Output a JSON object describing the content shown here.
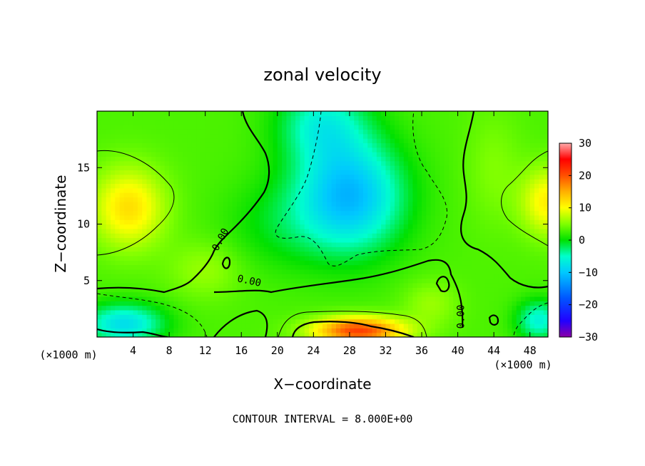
{
  "chart_data": {
    "type": "heatmap",
    "title": "zonal velocity",
    "xlabel": "X−coordinate",
    "ylabel": "Z−coordinate",
    "x_unit_left": "(×1000 m)",
    "x_unit_right": "(×1000 m)",
    "footer": "CONTOUR INTERVAL = 8.000E+00",
    "xlim": [
      0,
      50
    ],
    "ylim": [
      0,
      20
    ],
    "x_ticks": [
      4,
      8,
      12,
      16,
      20,
      24,
      28,
      32,
      36,
      40,
      44,
      48
    ],
    "y_ticks": [
      5,
      10,
      15
    ],
    "colorbar": {
      "range": [
        -30,
        30
      ],
      "ticks": [
        30,
        20,
        10,
        0,
        -10,
        -20,
        -30
      ],
      "tick_labels": [
        "30",
        "20",
        "10",
        "0",
        "−10",
        "−20",
        "−30"
      ],
      "stops": [
        {
          "v": -30,
          "c": "#8b00a8"
        },
        {
          "v": -25,
          "c": "#2200ff"
        },
        {
          "v": -18,
          "c": "#0055ff"
        },
        {
          "v": -10,
          "c": "#00c8ff"
        },
        {
          "v": -5,
          "c": "#00ffcc"
        },
        {
          "v": 0,
          "c": "#00e000"
        },
        {
          "v": 5,
          "c": "#7fff00"
        },
        {
          "v": 10,
          "c": "#ffff00"
        },
        {
          "v": 15,
          "c": "#ffb000"
        },
        {
          "v": 20,
          "c": "#ff5000"
        },
        {
          "v": 25,
          "c": "#ff0000"
        },
        {
          "v": 30,
          "c": "#ffaaaa"
        }
      ]
    },
    "contour_labels": [
      {
        "text": "0.00",
        "x": 14,
        "z": 8.5,
        "rot": -62
      },
      {
        "text": "0.00",
        "x": 16.8,
        "z": 4.7,
        "rot": 12
      },
      {
        "text": "0.00",
        "x": 40.7,
        "z": 1.8,
        "rot": -90
      }
    ],
    "field": {
      "background": 3,
      "blobs": [
        {
          "x": 3.5,
          "z": 11.5,
          "sx": 4.0,
          "sz": 3.5,
          "a": 9
        },
        {
          "x": 50,
          "z": 12,
          "sx": 3.0,
          "sz": 3.0,
          "a": 8
        },
        {
          "x": 28,
          "z": 12.5,
          "sx": 6.0,
          "sz": 5.0,
          "a": -14
        },
        {
          "x": 25,
          "z": 19,
          "sx": 5.0,
          "sz": 3.5,
          "a": -8
        },
        {
          "x": 20,
          "z": 10,
          "sx": 6.0,
          "sz": 4.0,
          "a": -3
        },
        {
          "x": 29,
          "z": 0.6,
          "sx": 5.0,
          "sz": 1.2,
          "a": 18
        },
        {
          "x": 3,
          "z": 1.2,
          "sx": 4.5,
          "sz": 1.8,
          "a": -11
        },
        {
          "x": 49,
          "z": 1.5,
          "sx": 2.5,
          "sz": 1.8,
          "a": -9
        },
        {
          "x": 12,
          "z": 6,
          "sx": 4.0,
          "sz": 2.5,
          "a": 3
        },
        {
          "x": 44,
          "z": 15,
          "sx": 3.0,
          "sz": 5.0,
          "a": 2
        },
        {
          "x": 37,
          "z": 3,
          "sx": 3.0,
          "sz": 2.0,
          "a": 3
        }
      ]
    }
  }
}
